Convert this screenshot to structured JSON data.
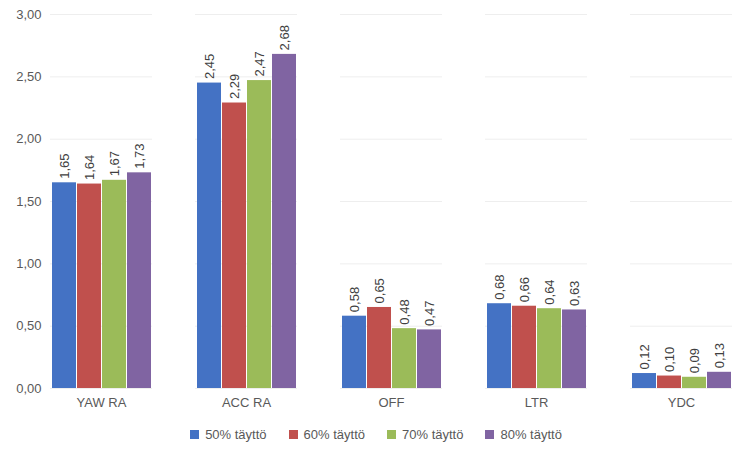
{
  "chart_data": {
    "type": "bar",
    "categories": [
      "YAW RA",
      "ACC RA",
      "OFF",
      "LTR",
      "YDC"
    ],
    "series": [
      {
        "name": "50% täyttö",
        "color": "#4472c4",
        "values": [
          1.65,
          2.45,
          0.58,
          0.68,
          0.12
        ],
        "value_labels": [
          "1,65",
          "2,45",
          "0,58",
          "0,68",
          "0,12"
        ]
      },
      {
        "name": "60% täyttö",
        "color": "#c0504d",
        "values": [
          1.64,
          2.29,
          0.65,
          0.66,
          0.1
        ],
        "value_labels": [
          "1,64",
          "2,29",
          "0,65",
          "0,66",
          "0,10"
        ]
      },
      {
        "name": "70% täyttö",
        "color": "#9bbb59",
        "values": [
          1.67,
          2.47,
          0.48,
          0.64,
          0.09
        ],
        "value_labels": [
          "1,67",
          "2,47",
          "0,48",
          "0,64",
          "0,09"
        ]
      },
      {
        "name": "80% täyttö",
        "color": "#8064a2",
        "values": [
          1.73,
          2.68,
          0.47,
          0.63,
          0.13
        ],
        "value_labels": [
          "1,73",
          "2,68",
          "0,47",
          "0,63",
          "0,13"
        ]
      }
    ],
    "ylim": [
      0,
      3
    ],
    "yticks": [
      {
        "value": 0,
        "label": "0,00"
      },
      {
        "value": 0.5,
        "label": "0,50"
      },
      {
        "value": 1,
        "label": "1,00"
      },
      {
        "value": 1.5,
        "label": "1,50"
      },
      {
        "value": 2,
        "label": "2,00"
      },
      {
        "value": 2.5,
        "label": "2,50"
      },
      {
        "value": 3,
        "label": "3,00"
      }
    ],
    "grid": true,
    "data_labels": true,
    "legend": "bottom"
  }
}
